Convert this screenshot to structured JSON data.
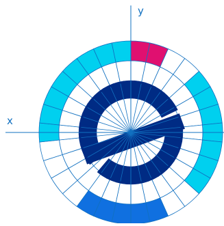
{
  "axes": {
    "x_label": "x",
    "y_label": "y"
  },
  "diagram": {
    "sector_count": 30,
    "colors": {
      "line": "#1170c0",
      "cyan": "#00d0ef",
      "magenta": "#e01070",
      "navy": "#002b84",
      "blue": "#1070e0",
      "white": "#ffffff"
    },
    "outer_ring_cells": [
      {
        "sector": 0,
        "color": "magenta"
      },
      {
        "sector": 1,
        "color": "magenta"
      },
      {
        "sector": 4,
        "color": "cyan"
      },
      {
        "sector": 5,
        "color": "cyan"
      },
      {
        "sector": 6,
        "color": "cyan"
      },
      {
        "sector": 7,
        "color": "cyan"
      },
      {
        "sector": 8,
        "color": "cyan"
      },
      {
        "sector": 9,
        "color": "cyan"
      },
      {
        "sector": 10,
        "color": "cyan"
      },
      {
        "sector": 13,
        "color": "blue"
      },
      {
        "sector": 14,
        "color": "blue"
      },
      {
        "sector": 15,
        "color": "blue"
      },
      {
        "sector": 16,
        "color": "blue"
      },
      {
        "sector": 17,
        "color": "blue"
      },
      {
        "sector": 22,
        "color": "cyan"
      },
      {
        "sector": 23,
        "color": "cyan"
      },
      {
        "sector": 24,
        "color": "cyan"
      },
      {
        "sector": 25,
        "color": "cyan"
      },
      {
        "sector": 26,
        "color": "cyan"
      },
      {
        "sector": 27,
        "color": "cyan"
      },
      {
        "sector": 28,
        "color": "cyan"
      },
      {
        "sector": 29,
        "color": "cyan"
      }
    ],
    "e_logo_sectors": [
      0,
      1,
      2,
      3,
      4,
      5,
      6,
      8,
      9,
      10,
      11,
      12,
      13,
      14,
      15,
      16,
      17,
      18,
      19,
      21,
      22,
      23,
      24,
      25,
      26,
      27,
      28,
      29
    ]
  }
}
